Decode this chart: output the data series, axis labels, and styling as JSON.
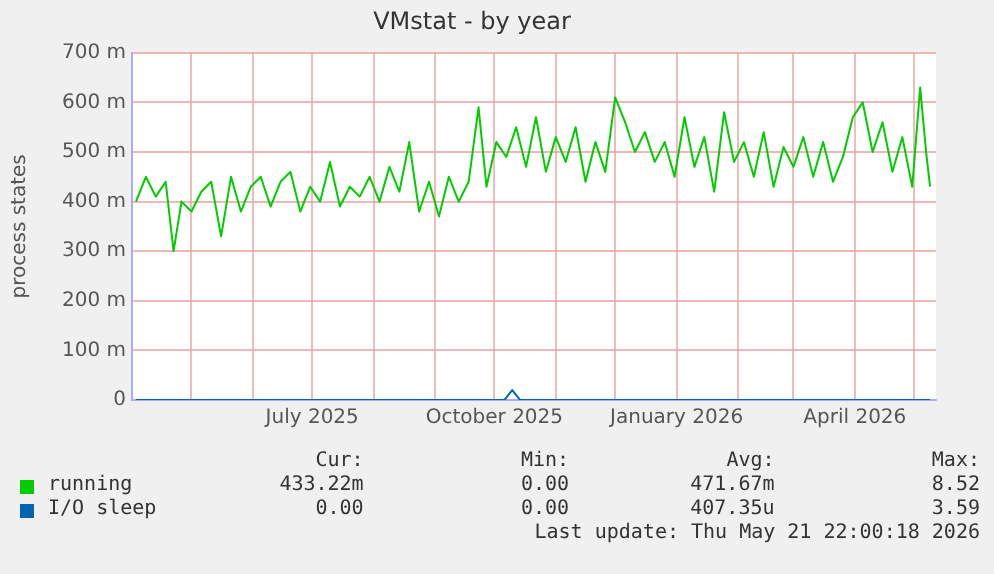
{
  "chart_data": {
    "type": "line",
    "title": "VMstat - by year",
    "ylabel": "process states",
    "xlim": [
      "2025-04-01",
      "2026-05-12"
    ],
    "xticks": [
      {
        "value": "2025-05-01",
        "label": null
      },
      {
        "value": "2025-06-01",
        "label": null
      },
      {
        "value": "2025-07-01",
        "label": "July 2025"
      },
      {
        "value": "2025-08-01",
        "label": null
      },
      {
        "value": "2025-09-01",
        "label": null
      },
      {
        "value": "2025-10-01",
        "label": "October 2025"
      },
      {
        "value": "2025-11-01",
        "label": null
      },
      {
        "value": "2025-12-01",
        "label": null
      },
      {
        "value": "2026-01-01",
        "label": "January 2026"
      },
      {
        "value": "2026-02-01",
        "label": null
      },
      {
        "value": "2026-03-01",
        "label": null
      },
      {
        "value": "2026-04-01",
        "label": "April 2026"
      },
      {
        "value": "2026-05-01",
        "label": null
      }
    ],
    "ylim": [
      0,
      700
    ],
    "yticks": [
      0,
      {
        "value": 100,
        "label": "100 m"
      },
      {
        "value": 200,
        "label": "200 m"
      },
      {
        "value": 300,
        "label": "300 m"
      },
      {
        "value": 400,
        "label": "400 m"
      },
      {
        "value": 500,
        "label": "500 m"
      },
      {
        "value": 600,
        "label": "600 m"
      },
      {
        "value": 700,
        "label": "700 m"
      }
    ],
    "grid": true,
    "legend": "bottom",
    "marker": "none",
    "line_style": "solid",
    "series": [
      {
        "name": "running",
        "color": "#00cc00",
        "x": [
          "2025-04-03",
          "2025-04-08",
          "2025-04-13",
          "2025-04-18",
          "2025-04-22",
          "2025-04-26",
          "2025-05-01",
          "2025-05-06",
          "2025-05-11",
          "2025-05-16",
          "2025-05-21",
          "2025-05-26",
          "2025-05-31",
          "2025-06-05",
          "2025-06-10",
          "2025-06-15",
          "2025-06-20",
          "2025-06-25",
          "2025-06-30",
          "2025-07-05",
          "2025-07-10",
          "2025-07-15",
          "2025-07-20",
          "2025-07-25",
          "2025-07-30",
          "2025-08-04",
          "2025-08-09",
          "2025-08-14",
          "2025-08-19",
          "2025-08-24",
          "2025-08-29",
          "2025-09-03",
          "2025-09-08",
          "2025-09-13",
          "2025-09-18",
          "2025-09-23",
          "2025-09-27",
          "2025-10-02",
          "2025-10-07",
          "2025-10-12",
          "2025-10-17",
          "2025-10-22",
          "2025-10-27",
          "2025-11-01",
          "2025-11-06",
          "2025-11-11",
          "2025-11-16",
          "2025-11-21",
          "2025-11-26",
          "2025-12-01",
          "2025-12-06",
          "2025-12-11",
          "2025-12-16",
          "2025-12-21",
          "2025-12-26",
          "2025-12-31",
          "2026-01-05",
          "2026-01-10",
          "2026-01-15",
          "2026-01-20",
          "2026-01-25",
          "2026-01-30",
          "2026-02-04",
          "2026-02-09",
          "2026-02-14",
          "2026-02-19",
          "2026-02-24",
          "2026-03-01",
          "2026-03-06",
          "2026-03-11",
          "2026-03-16",
          "2026-03-21",
          "2026-03-26",
          "2026-03-31",
          "2026-04-05",
          "2026-04-10",
          "2026-04-15",
          "2026-04-20",
          "2026-04-25",
          "2026-04-30",
          "2026-05-04",
          "2026-05-07",
          "2026-05-09"
        ],
        "values": [
          400,
          450,
          410,
          440,
          300,
          400,
          380,
          420,
          440,
          330,
          450,
          380,
          430,
          450,
          390,
          440,
          460,
          380,
          430,
          400,
          480,
          390,
          430,
          410,
          450,
          400,
          470,
          420,
          520,
          380,
          440,
          370,
          450,
          400,
          440,
          590,
          430,
          520,
          490,
          550,
          470,
          570,
          460,
          530,
          480,
          550,
          440,
          520,
          460,
          610,
          560,
          500,
          540,
          480,
          520,
          450,
          570,
          470,
          530,
          420,
          580,
          480,
          520,
          450,
          540,
          430,
          510,
          470,
          530,
          450,
          520,
          440,
          490,
          570,
          600,
          500,
          560,
          460,
          530,
          430,
          630,
          500,
          430
        ]
      },
      {
        "name": "I/O sleep",
        "color": "#0066b3",
        "x": [
          "2025-04-03",
          "2025-10-06",
          "2025-10-10",
          "2025-10-14",
          "2026-05-09"
        ],
        "values": [
          0,
          0,
          20,
          0,
          0
        ]
      }
    ],
    "annotations": [
      "Cur:",
      "Min:",
      "Avg:",
      "Max:",
      "433.22m",
      "0.00",
      "471.67m",
      "8.52",
      "0.00",
      "0.00",
      "407.35u",
      "3.59",
      "Last update: Thu May 21 22:00:18 2026"
    ]
  }
}
